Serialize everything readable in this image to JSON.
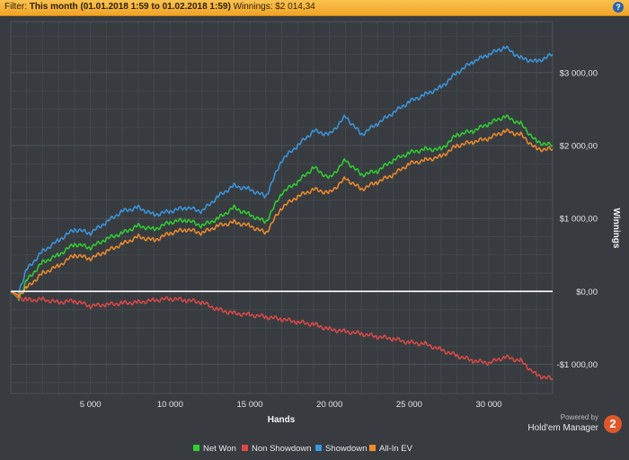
{
  "filter_bar": {
    "prefix": "Filter:",
    "period": "This month (01.01.2018 1:59 to 01.02.2018 1:59)",
    "winnings": "Winnings: $2 014,34",
    "help_glyph": "?"
  },
  "chart_data": {
    "type": "line",
    "xlabel": "Hands",
    "ylabel": "Winnings",
    "xlim": [
      0,
      34000
    ],
    "ylim": [
      -1400,
      3700
    ],
    "x_ticks": [
      5000,
      10000,
      15000,
      20000,
      25000,
      30000
    ],
    "x_tick_labels": [
      "5 000",
      "10 000",
      "15 000",
      "20 000",
      "25 000",
      "30 000"
    ],
    "y_ticks": [
      -1000,
      0,
      1000,
      2000,
      3000
    ],
    "y_tick_labels": [
      "-$1 000,00",
      "$0,00",
      "$1 000,00",
      "$2 000,00",
      "$3 000,00"
    ],
    "grid": true,
    "legend_position": "bottom-center",
    "series": [
      {
        "name": "Net Won",
        "color": "#2fd12f",
        "x": [
          0,
          500,
          1000,
          2000,
          3000,
          4000,
          5000,
          6000,
          7000,
          8000,
          9000,
          10000,
          11000,
          12000,
          13000,
          14000,
          15000,
          16000,
          17000,
          18000,
          19000,
          20000,
          21000,
          22000,
          23000,
          24000,
          25000,
          26000,
          27000,
          28000,
          29000,
          30000,
          31000,
          32000,
          33000,
          34000
        ],
        "y": [
          0,
          -100,
          150,
          400,
          500,
          650,
          600,
          720,
          800,
          900,
          850,
          950,
          980,
          900,
          1000,
          1150,
          1050,
          950,
          1350,
          1500,
          1700,
          1550,
          1800,
          1600,
          1650,
          1800,
          1900,
          1950,
          1950,
          2150,
          2200,
          2300,
          2400,
          2300,
          2050,
          2000
        ]
      },
      {
        "name": "Non Showdown",
        "color": "#e04848",
        "x": [
          0,
          500,
          1000,
          2000,
          3000,
          4000,
          5000,
          6000,
          7000,
          8000,
          9000,
          10000,
          11000,
          12000,
          13000,
          14000,
          15000,
          16000,
          17000,
          18000,
          19000,
          20000,
          21000,
          22000,
          23000,
          24000,
          25000,
          26000,
          27000,
          28000,
          29000,
          30000,
          31000,
          32000,
          33000,
          34000
        ],
        "y": [
          0,
          -80,
          -120,
          -110,
          -150,
          -130,
          -200,
          -180,
          -160,
          -150,
          -120,
          -100,
          -120,
          -150,
          -250,
          -300,
          -320,
          -350,
          -380,
          -420,
          -450,
          -520,
          -550,
          -580,
          -620,
          -650,
          -700,
          -720,
          -800,
          -880,
          -950,
          -980,
          -900,
          -950,
          -1150,
          -1200
        ]
      },
      {
        "name": "Showdown",
        "color": "#3b97e0",
        "x": [
          0,
          500,
          1000,
          2000,
          3000,
          4000,
          5000,
          6000,
          7000,
          8000,
          9000,
          10000,
          11000,
          12000,
          13000,
          14000,
          15000,
          16000,
          17000,
          18000,
          19000,
          20000,
          21000,
          22000,
          23000,
          24000,
          25000,
          26000,
          27000,
          28000,
          29000,
          30000,
          31000,
          32000,
          33000,
          34000
        ],
        "y": [
          0,
          0,
          300,
          550,
          700,
          850,
          800,
          950,
          1100,
          1150,
          1050,
          1100,
          1150,
          1100,
          1300,
          1450,
          1400,
          1300,
          1800,
          2000,
          2200,
          2150,
          2400,
          2150,
          2300,
          2450,
          2600,
          2700,
          2800,
          3000,
          3150,
          3250,
          3350,
          3200,
          3150,
          3250
        ]
      },
      {
        "name": "All-In EV",
        "color": "#f28c2a",
        "x": [
          0,
          500,
          1000,
          2000,
          3000,
          4000,
          5000,
          6000,
          7000,
          8000,
          9000,
          10000,
          11000,
          12000,
          13000,
          14000,
          15000,
          16000,
          17000,
          18000,
          19000,
          20000,
          21000,
          22000,
          23000,
          24000,
          25000,
          26000,
          27000,
          28000,
          29000,
          30000,
          31000,
          32000,
          33000,
          34000
        ],
        "y": [
          0,
          -50,
          50,
          250,
          350,
          500,
          450,
          550,
          650,
          750,
          700,
          800,
          850,
          800,
          900,
          950,
          900,
          800,
          1150,
          1300,
          1400,
          1350,
          1550,
          1400,
          1500,
          1600,
          1750,
          1800,
          1850,
          2000,
          2050,
          2100,
          2200,
          2150,
          1950,
          1950
        ]
      }
    ]
  },
  "legend": [
    {
      "label": "Net Won",
      "color": "#2fd12f"
    },
    {
      "label": "Non Showdown",
      "color": "#e04848"
    },
    {
      "label": "Showdown",
      "color": "#3b97e0"
    },
    {
      "label": "All-In EV",
      "color": "#f28c2a"
    }
  ],
  "branding": {
    "powered_by": "Powered by",
    "product": "Hold'em Manager",
    "logo_glyph": "2"
  }
}
